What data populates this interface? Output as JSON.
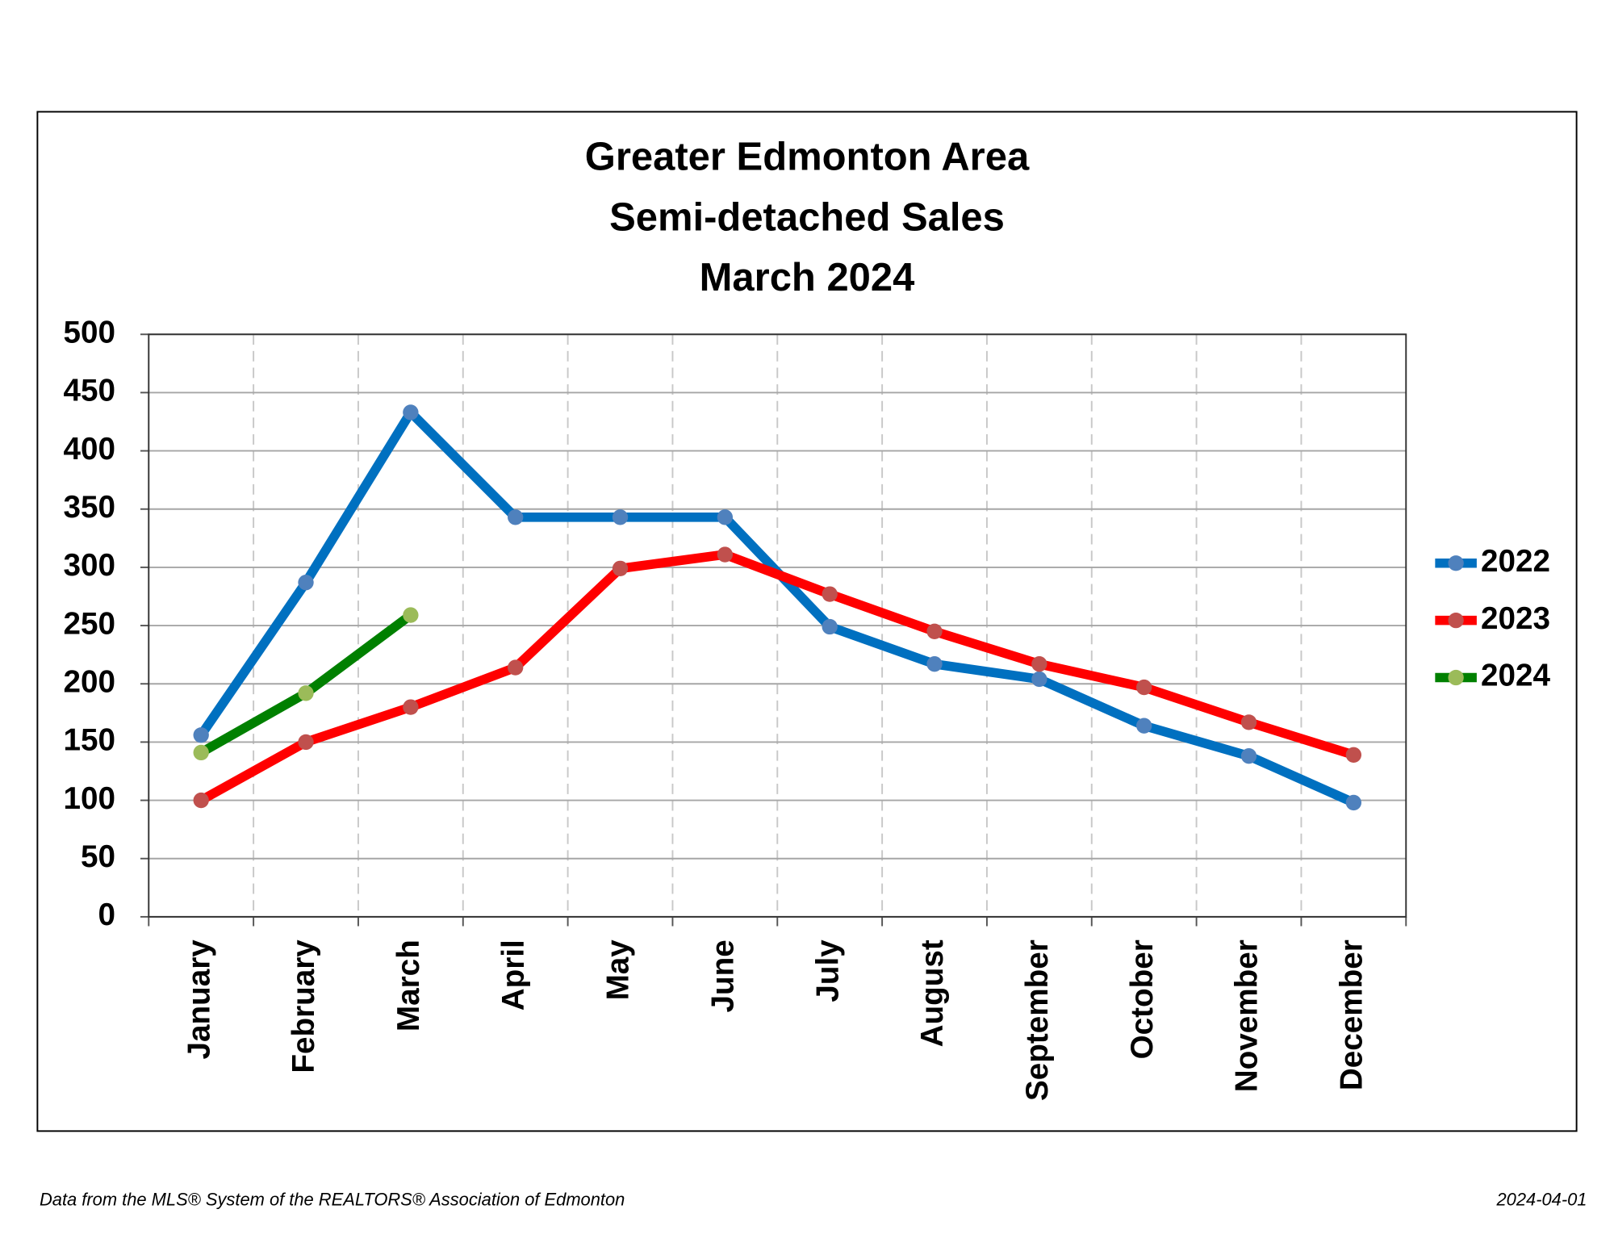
{
  "chart_data": {
    "type": "line",
    "title": [
      "Greater Edmonton Area",
      "Semi-detached Sales",
      "March 2024"
    ],
    "categories": [
      "January",
      "February",
      "March",
      "April",
      "May",
      "June",
      "July",
      "August",
      "September",
      "October",
      "November",
      "December"
    ],
    "series": [
      {
        "name": "2022",
        "color": "#0070c0",
        "marker_color": "#4f81bd",
        "values": [
          156,
          287,
          433,
          343,
          343,
          343,
          249,
          217,
          204,
          164,
          138,
          98
        ]
      },
      {
        "name": "2023",
        "color": "#ff0000",
        "marker_color": "#c0504d",
        "values": [
          100,
          150,
          180,
          214,
          299,
          311,
          277,
          245,
          217,
          197,
          167,
          139
        ]
      },
      {
        "name": "2024",
        "color": "#008000",
        "marker_color": "#9bbb59",
        "values": [
          141,
          192,
          259,
          null,
          null,
          null,
          null,
          null,
          null,
          null,
          null,
          null
        ]
      }
    ],
    "ylim": [
      0,
      500
    ],
    "yticks": [
      0,
      50,
      100,
      150,
      200,
      250,
      300,
      350,
      400,
      450,
      500
    ],
    "grid": true,
    "legend": "right",
    "source": "Data from the MLS® System of the REALTORS® Association of Edmonton",
    "date": "2024-04-01"
  }
}
